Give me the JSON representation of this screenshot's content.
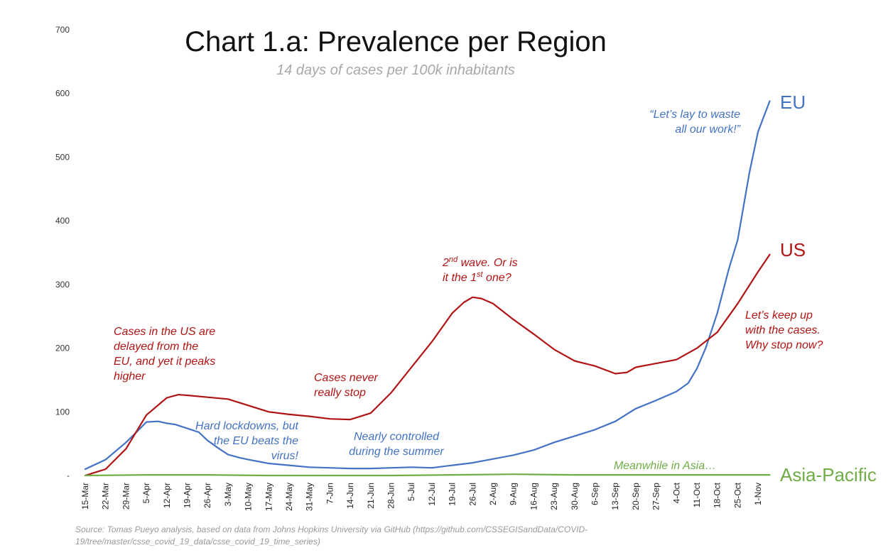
{
  "colors": {
    "EU": "#4472c4",
    "US": "#b01414",
    "Asia-Pacific": "#70ad47"
  },
  "chart_data": {
    "type": "line",
    "title": "Chart 1.a: Prevalence per Region",
    "subtitle": "14 days of cases per 100k inhabitants",
    "ylim": [
      0,
      700
    ],
    "yticks": [
      "-",
      "100",
      "200",
      "300",
      "400",
      "500",
      "600",
      "700"
    ],
    "ytick_values": [
      0,
      100,
      200,
      300,
      400,
      500,
      600,
      700
    ],
    "grid": false,
    "x_start": "15-Mar",
    "x_end": "5-Nov",
    "xticks": [
      "15-Mar",
      "22-Mar",
      "29-Mar",
      "5-Apr",
      "12-Apr",
      "19-Apr",
      "26-Apr",
      "3-May",
      "10-May",
      "17-May",
      "24-May",
      "31-May",
      "7-Jun",
      "14-Jun",
      "21-Jun",
      "28-Jun",
      "5-Jul",
      "12-Jul",
      "19-Jul",
      "26-Jul",
      "2-Aug",
      "9-Aug",
      "16-Aug",
      "23-Aug",
      "30-Aug",
      "6-Sep",
      "13-Sep",
      "20-Sep",
      "27-Sep",
      "4-Oct",
      "11-Oct",
      "18-Oct",
      "25-Oct",
      "1-Nov"
    ],
    "series": [
      {
        "name": "EU",
        "x": [
          "15-Mar",
          "22-Mar",
          "29-Mar",
          "2-Apr",
          "5-Apr",
          "9-Apr",
          "12-Apr",
          "15-Apr",
          "19-Apr",
          "23-Apr",
          "26-Apr",
          "30-Apr",
          "3-May",
          "7-May",
          "10-May",
          "17-May",
          "24-May",
          "31-May",
          "7-Jun",
          "14-Jun",
          "21-Jun",
          "28-Jun",
          "5-Jul",
          "12-Jul",
          "19-Jul",
          "26-Jul",
          "2-Aug",
          "9-Aug",
          "16-Aug",
          "23-Aug",
          "30-Aug",
          "6-Sep",
          "13-Sep",
          "20-Sep",
          "27-Sep",
          "4-Oct",
          "8-Oct",
          "11-Oct",
          "14-Oct",
          "18-Oct",
          "22-Oct",
          "25-Oct",
          "29-Oct",
          "1-Nov",
          "5-Nov"
        ],
        "values": [
          10,
          25,
          52,
          70,
          84,
          85,
          82,
          80,
          74,
          68,
          55,
          42,
          33,
          28,
          25,
          19,
          16,
          13,
          12,
          11,
          11,
          12,
          13,
          12,
          16,
          20,
          26,
          32,
          40,
          52,
          62,
          72,
          85,
          105,
          118,
          132,
          145,
          168,
          200,
          255,
          325,
          370,
          475,
          540,
          588
        ]
      },
      {
        "name": "US",
        "x": [
          "15-Mar",
          "22-Mar",
          "29-Mar",
          "5-Apr",
          "12-Apr",
          "16-Apr",
          "19-Apr",
          "26-Apr",
          "3-May",
          "10-May",
          "17-May",
          "24-May",
          "31-May",
          "7-Jun",
          "14-Jun",
          "21-Jun",
          "28-Jun",
          "5-Jul",
          "12-Jul",
          "19-Jul",
          "23-Jul",
          "26-Jul",
          "29-Jul",
          "2-Aug",
          "9-Aug",
          "16-Aug",
          "23-Aug",
          "30-Aug",
          "6-Sep",
          "13-Sep",
          "17-Sep",
          "20-Sep",
          "27-Sep",
          "4-Oct",
          "11-Oct",
          "18-Oct",
          "25-Oct",
          "1-Nov",
          "5-Nov"
        ],
        "values": [
          0,
          10,
          42,
          95,
          122,
          127,
          126,
          123,
          120,
          110,
          100,
          96,
          93,
          89,
          88,
          98,
          130,
          170,
          210,
          255,
          272,
          280,
          278,
          270,
          245,
          222,
          198,
          180,
          172,
          160,
          162,
          170,
          176,
          182,
          200,
          225,
          270,
          320,
          347
        ]
      },
      {
        "name": "Asia-Pacific",
        "x": [
          "15-Mar",
          "5-Apr",
          "26-Apr",
          "17-May",
          "7-Jun",
          "28-Jun",
          "19-Jul",
          "9-Aug",
          "30-Aug",
          "20-Sep",
          "11-Oct",
          "1-Nov",
          "5-Nov"
        ],
        "values": [
          0,
          1,
          1,
          0,
          0,
          0,
          1,
          2,
          1,
          1,
          1,
          1,
          1
        ]
      }
    ],
    "annotations": [
      {
        "series": "US",
        "lines": [
          "Cases in the US are",
          "delayed from the",
          "EU, and yet it peaks",
          "higher"
        ]
      },
      {
        "series": "EU",
        "lines": [
          "Hard lockdowns, but",
          "the EU beats the",
          "virus!"
        ]
      },
      {
        "series": "US",
        "lines": [
          "Cases never",
          "really stop"
        ]
      },
      {
        "series": "EU",
        "lines": [
          "Nearly controlled",
          "during the summer"
        ]
      },
      {
        "series": "US",
        "rich": true,
        "lines": [
          [
            "2",
            "nd",
            " wave. Or is"
          ],
          [
            "it the 1",
            "st",
            " one?"
          ]
        ]
      },
      {
        "series": "EU",
        "lines": [
          "“Let’s lay to waste",
          "all our work!”"
        ]
      },
      {
        "series": "US",
        "lines": [
          "Let’s keep up",
          "with the cases.",
          "Why stop now?"
        ]
      },
      {
        "series": "Asia-Pacific",
        "lines": [
          "Meanwhile in Asia…"
        ]
      }
    ],
    "end_labels": [
      "EU",
      "US",
      "Asia-Pacific"
    ],
    "source_lines": [
      "Source: Tomas Pueyo analysis, based on data from Johns Hopkins University via GitHub (https://github.com/CSSEGISandData/COVID-",
      "19/tree/master/csse_covid_19_data/csse_covid_19_time_series)"
    ]
  }
}
